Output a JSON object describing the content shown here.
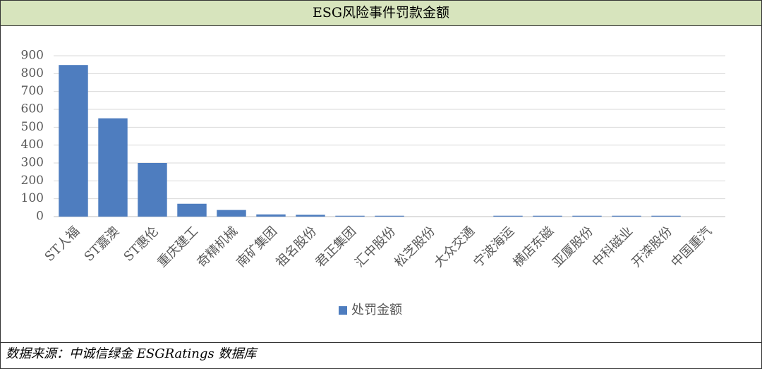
{
  "chart_data": {
    "type": "bar",
    "title": "ESG风险事件罚款金额",
    "categories": [
      "ST人福",
      "ST嘉澳",
      "ST惠伦",
      "重庆建工",
      "奇精机械",
      "南矿集团",
      "祖名股份",
      "君正集团",
      "汇中股份",
      "松芝股份",
      "大众交通",
      "宁波海运",
      "横店东磁",
      "亚厦股份",
      "中科磁业",
      "开滦股份",
      "中国重汽"
    ],
    "series": [
      {
        "name": "处罚金额",
        "color": "#4e7dbf",
        "values": [
          848,
          550,
          300,
          72,
          37,
          12,
          10,
          5,
          5,
          0,
          0,
          5,
          5,
          5,
          5,
          5,
          0
        ]
      }
    ],
    "ylim": [
      0,
      900
    ],
    "yticks": [
      0,
      100,
      200,
      300,
      400,
      500,
      600,
      700,
      800,
      900
    ],
    "grid": true,
    "legend": "bottom"
  },
  "source": "数据来源：中诚信绿金 ESGRatings 数据库"
}
